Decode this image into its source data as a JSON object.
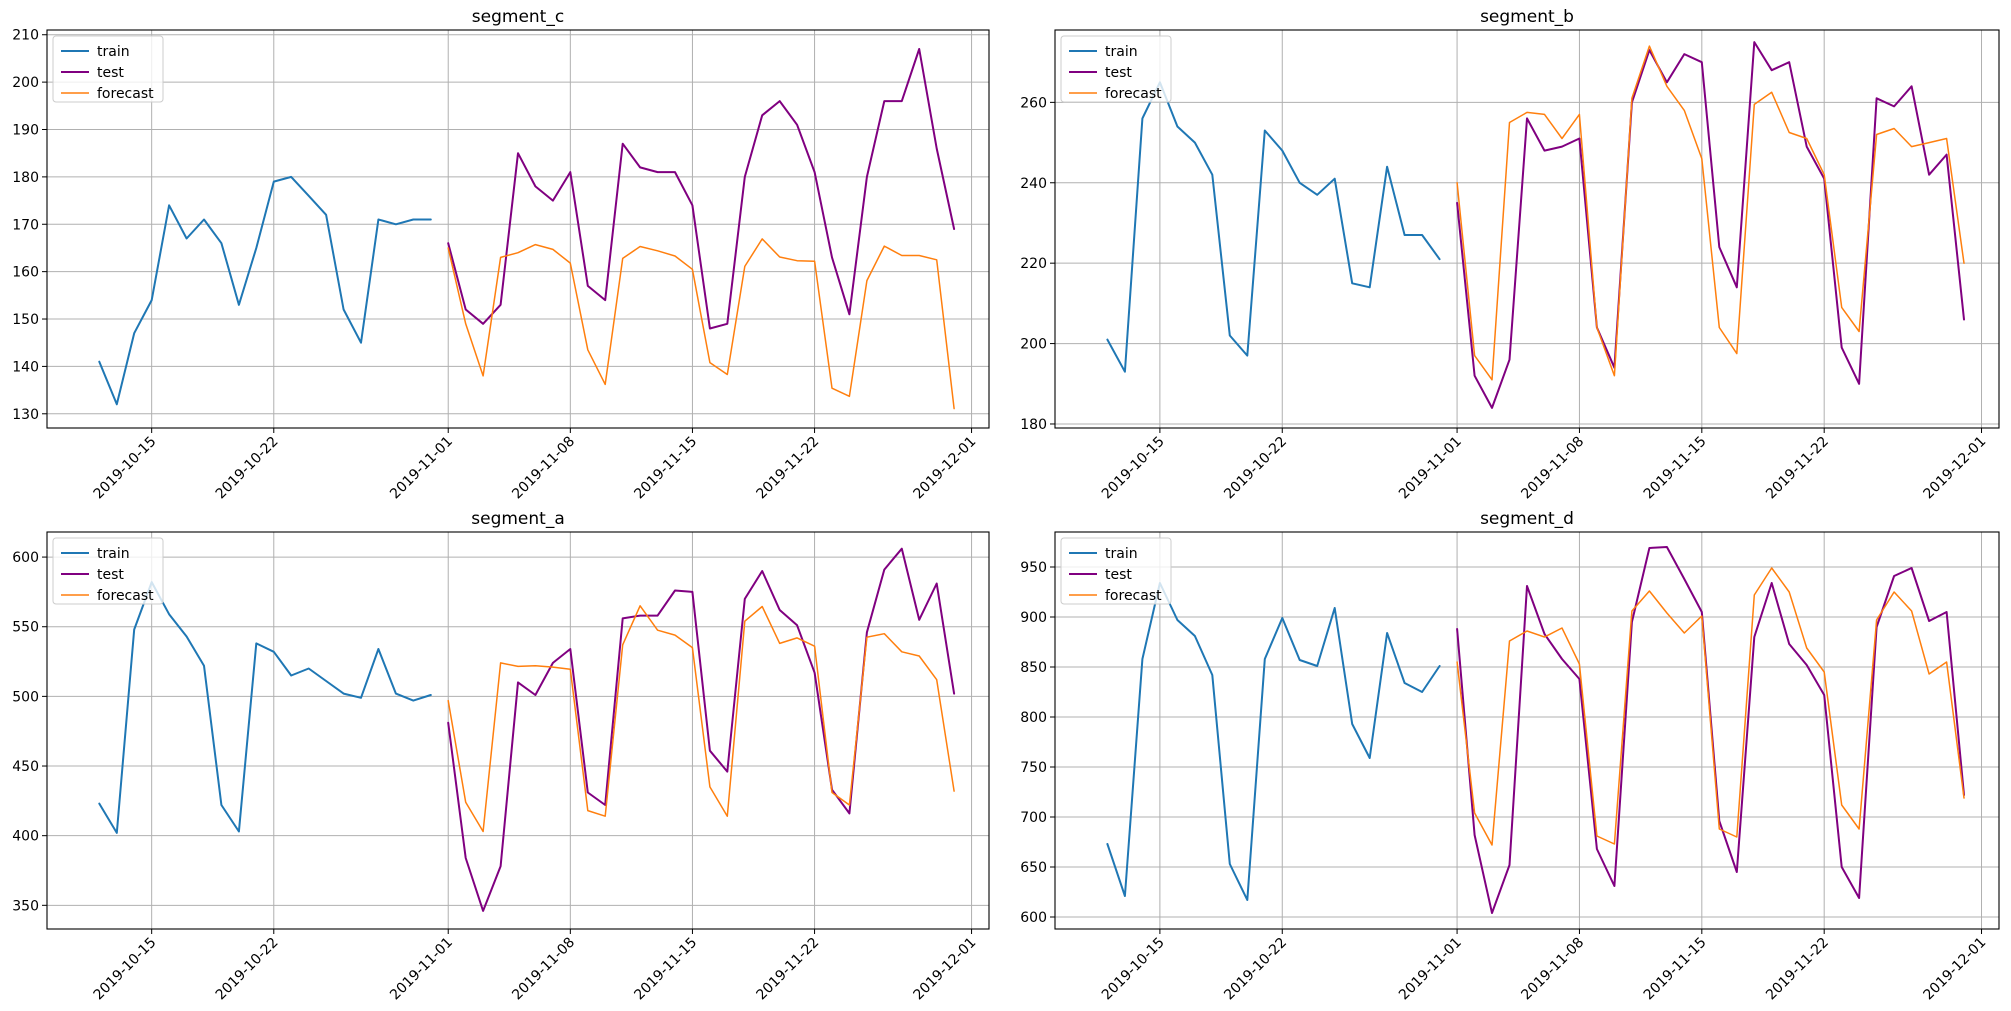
{
  "x_ticks": [
    "2019-10-15",
    "2019-10-22",
    "2019-11-01",
    "2019-11-08",
    "2019-11-15",
    "2019-11-22",
    "2019-12-01"
  ],
  "x_tick_dates": [
    "2019-10-15",
    "2019-10-22",
    "2019-11-01",
    "2019-11-08",
    "2019-11-15",
    "2019-11-22",
    "2019-12-01"
  ],
  "x_range": [
    "2019-10-09",
    "2019-12-02"
  ],
  "series_colors": {
    "train": "#1f77b4",
    "test": "#800080",
    "forecast": "#ff7f0e"
  },
  "legend_labels": [
    "train",
    "test",
    "forecast"
  ],
  "chart_data": [
    {
      "type": "line",
      "title": "segment_c",
      "ylim": [
        127,
        211
      ],
      "y_ticks": [
        130,
        140,
        150,
        160,
        170,
        180,
        190,
        200,
        210
      ],
      "grid": true,
      "legend": "upper-left",
      "series": [
        {
          "name": "train",
          "start": "2019-10-12",
          "values": [
            141,
            132,
            147,
            154,
            174,
            167,
            171,
            166,
            153,
            165,
            179,
            180,
            176,
            172,
            152,
            145,
            171,
            170,
            171,
            171
          ]
        },
        {
          "name": "test",
          "start": "2019-11-01",
          "values": [
            166,
            152,
            149,
            153,
            185,
            178,
            175,
            181,
            157,
            154,
            187,
            182,
            181,
            181,
            174,
            148,
            149,
            180,
            193,
            196,
            191,
            181,
            163,
            151,
            180,
            196,
            196,
            207,
            186,
            169
          ]
        },
        {
          "name": "forecast",
          "start": "2019-11-01",
          "values": [
            165,
            149,
            138,
            163,
            164,
            165.7,
            164.7,
            161.8,
            143.5,
            136.2,
            162.8,
            165.3,
            164.4,
            163.3,
            160.5,
            140.8,
            138.3,
            161.1,
            166.9,
            163.1,
            162.3,
            162.2,
            135.4,
            133.7,
            158.1,
            165.4,
            163.4,
            163.4,
            162.5,
            131.1
          ]
        }
      ]
    },
    {
      "type": "line",
      "title": "segment_b",
      "ylim": [
        179,
        278
      ],
      "y_ticks": [
        180,
        200,
        220,
        240,
        260
      ],
      "grid": true,
      "legend": "upper-left",
      "series": [
        {
          "name": "train",
          "start": "2019-10-12",
          "values": [
            201,
            193,
            256,
            265,
            254,
            250,
            242,
            202,
            197,
            253,
            248,
            240,
            237,
            241,
            215,
            214,
            244,
            227,
            227,
            221
          ]
        },
        {
          "name": "test",
          "start": "2019-11-01",
          "values": [
            235,
            192,
            184,
            196,
            256,
            248,
            249,
            251,
            204,
            194,
            260,
            273,
            265,
            272,
            270,
            224,
            214,
            275,
            268,
            270,
            249,
            241,
            199,
            190,
            261,
            259,
            264,
            242,
            247,
            206
          ]
        },
        {
          "name": "forecast",
          "start": "2019-11-01",
          "values": [
            240,
            197,
            191,
            255,
            257.5,
            257,
            251,
            257,
            204,
            192,
            261,
            274,
            264,
            258,
            246,
            204,
            197.5,
            259.5,
            262.5,
            252.5,
            251,
            242,
            209,
            203,
            252,
            253.5,
            249,
            250,
            251,
            220
          ]
        }
      ]
    },
    {
      "type": "line",
      "title": "segment_a",
      "ylim": [
        333,
        618
      ],
      "y_ticks": [
        350,
        400,
        450,
        500,
        550,
        600
      ],
      "grid": true,
      "legend": "upper-left",
      "series": [
        {
          "name": "train",
          "start": "2019-10-12",
          "values": [
            423,
            402,
            548,
            582,
            559,
            543,
            522,
            422,
            403,
            538,
            532,
            515,
            520,
            511,
            502,
            499,
            534,
            502,
            497,
            501
          ]
        },
        {
          "name": "test",
          "start": "2019-11-01",
          "values": [
            481,
            384,
            346,
            378,
            510,
            501,
            524,
            534,
            431,
            422,
            556,
            558,
            558,
            576,
            575,
            461,
            446,
            570,
            590,
            562,
            551,
            517,
            433,
            416,
            546,
            591,
            606,
            555,
            581,
            502
          ]
        },
        {
          "name": "forecast",
          "start": "2019-11-01",
          "values": [
            497,
            424,
            403,
            524,
            521.5,
            522,
            521,
            519.5,
            418,
            414,
            537,
            565,
            547.5,
            544,
            535,
            435,
            414,
            554,
            564.5,
            538,
            542,
            536,
            431,
            422,
            542.5,
            545,
            532,
            529,
            512,
            432
          ]
        }
      ]
    },
    {
      "type": "line",
      "title": "segment_d",
      "ylim": [
        588,
        985
      ],
      "y_ticks": [
        600,
        650,
        700,
        750,
        800,
        850,
        900,
        950
      ],
      "grid": true,
      "legend": "upper-left",
      "series": [
        {
          "name": "train",
          "start": "2019-10-12",
          "values": [
            673,
            621,
            858,
            934,
            897,
            881,
            842,
            653,
            617,
            858,
            899,
            857,
            851,
            909,
            793,
            759,
            884,
            834,
            825,
            851
          ]
        },
        {
          "name": "test",
          "start": "2019-11-01",
          "values": [
            888,
            682,
            604,
            652,
            931,
            883,
            858,
            838,
            668,
            631,
            895,
            969,
            970,
            938,
            905,
            696,
            645,
            880,
            934,
            873,
            852,
            822,
            650,
            619,
            890,
            941,
            949,
            896,
            905,
            722
          ]
        },
        {
          "name": "forecast",
          "start": "2019-11-01",
          "values": [
            855,
            704,
            672,
            876,
            886,
            880,
            889,
            853,
            681,
            673,
            906,
            926,
            904,
            884,
            901,
            688,
            680,
            922,
            949,
            925,
            869,
            845,
            712,
            688,
            897,
            925,
            906,
            843,
            855,
            719
          ]
        }
      ]
    }
  ]
}
